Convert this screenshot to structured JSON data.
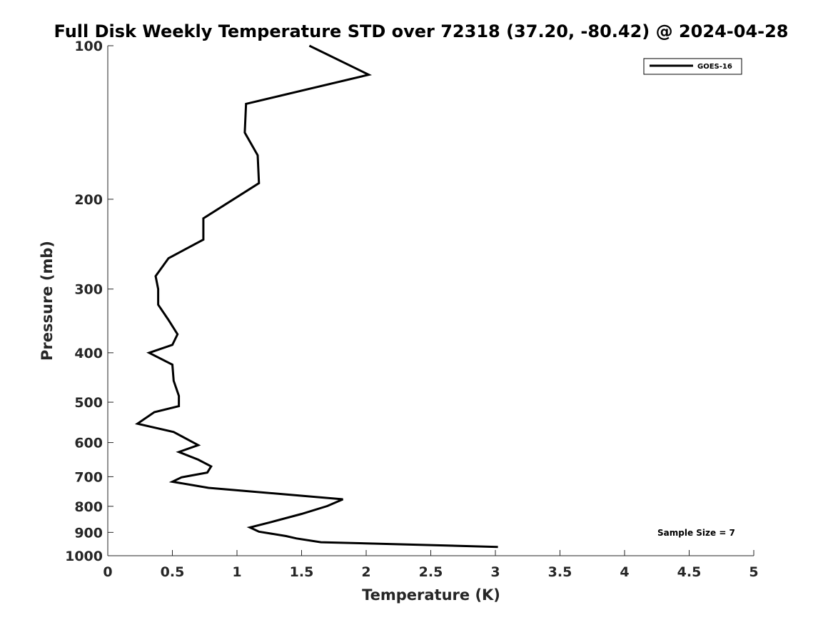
{
  "chart_data": {
    "type": "line",
    "title": "Full Disk Weekly Temperature STD over 72318 (37.20, -80.42) @ 2024-04-28",
    "xlabel": "Temperature (K)",
    "ylabel": "Pressure (mb)",
    "xlim": [
      0,
      5
    ],
    "ylim": [
      100,
      1000
    ],
    "y_scale": "log",
    "y_reversed": true,
    "x_ticks": [
      "0",
      "0.5",
      "1",
      "1.5",
      "2",
      "2.5",
      "3",
      "3.5",
      "4",
      "4.5",
      "5"
    ],
    "y_ticks": [
      "100",
      "200",
      "300",
      "400",
      "500",
      "600",
      "700",
      "800",
      "900",
      "1000"
    ],
    "grid": false,
    "legend_position": "top-right",
    "series": [
      {
        "name": "GOES-16",
        "color": "#000000",
        "x": [
          1.56,
          2.02,
          1.07,
          1.06,
          1.16,
          1.17,
          0.74,
          0.74,
          0.47,
          0.37,
          0.39,
          0.39,
          0.47,
          0.54,
          0.5,
          0.32,
          0.5,
          0.51,
          0.55,
          0.55,
          0.36,
          0.23,
          0.51,
          0.62,
          0.7,
          0.55,
          0.7,
          0.8,
          0.77,
          0.57,
          0.5,
          0.78,
          1.82,
          1.7,
          1.5,
          1.25,
          1.1,
          1.17,
          1.38,
          1.46,
          1.65,
          3.02
        ],
        "y": [
          100,
          114,
          130,
          148,
          164,
          186,
          218,
          240,
          261,
          283,
          300,
          322,
          345,
          368,
          386,
          400,
          422,
          454,
          486,
          509,
          523,
          551,
          572,
          592,
          607,
          626,
          648,
          668,
          687,
          702,
          716,
          736,
          775,
          799,
          828,
          861,
          880,
          897,
          915,
          925,
          941,
          961
        ]
      }
    ],
    "annotation": "Sample Size = 7"
  }
}
